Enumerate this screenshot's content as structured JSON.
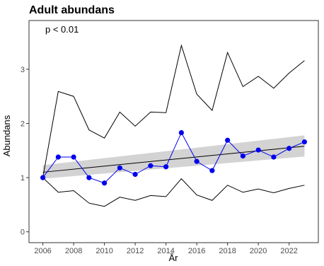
{
  "chart_data": {
    "type": "line",
    "title": "Adult abundans",
    "annotation": "p < 0.01",
    "xlabel": "År",
    "ylabel": "Abundans",
    "xlim": [
      2005.1,
      2023.9
    ],
    "ylim": [
      -0.2,
      3.9
    ],
    "x_ticks": [
      2006,
      2008,
      2010,
      2012,
      2014,
      2016,
      2018,
      2020,
      2022
    ],
    "y_ticks": [
      0,
      1,
      2,
      3
    ],
    "grid": false,
    "legend": "none",
    "x": [
      2006,
      2007,
      2008,
      2009,
      2010,
      2011,
      2012,
      2013,
      2014,
      2015,
      2016,
      2017,
      2018,
      2019,
      2020,
      2021,
      2022,
      2023
    ],
    "series": [
      {
        "role": "mean",
        "color": "#0000ee",
        "values": [
          1.0,
          1.38,
          1.38,
          1.0,
          0.9,
          1.18,
          1.06,
          1.22,
          1.2,
          1.83,
          1.3,
          1.13,
          1.69,
          1.4,
          1.51,
          1.38,
          1.54,
          1.66
        ]
      },
      {
        "role": "upper",
        "color": "#000000",
        "values": [
          1.0,
          2.59,
          2.5,
          1.88,
          1.73,
          2.21,
          1.95,
          2.21,
          2.2,
          3.44,
          2.54,
          2.24,
          3.31,
          2.68,
          2.87,
          2.65,
          2.93,
          3.16
        ]
      },
      {
        "role": "lower",
        "color": "#000000",
        "values": [
          1.0,
          0.73,
          0.76,
          0.53,
          0.47,
          0.64,
          0.58,
          0.67,
          0.65,
          0.98,
          0.68,
          0.58,
          0.86,
          0.73,
          0.79,
          0.72,
          0.8,
          0.86
        ]
      }
    ],
    "trend": {
      "color": "#000000",
      "x": [
        2006,
        2023
      ],
      "y": [
        1.1,
        1.58
      ],
      "band_color": "#d3d3d3",
      "band_lower": [
        0.98,
        1.39
      ],
      "band_upper": [
        1.23,
        1.78
      ]
    }
  }
}
